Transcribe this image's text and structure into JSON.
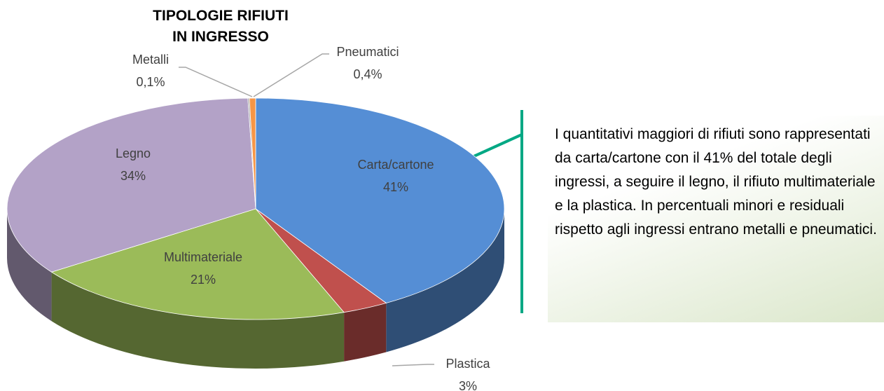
{
  "chart_data": {
    "type": "pie",
    "title": "TIPOLOGIE RIFIUTI IN INGRESSO",
    "categories": [
      "Carta/cartone",
      "Plastica",
      "Multimateriale",
      "Legno",
      "Metalli",
      "Pneumatici"
    ],
    "values": [
      41,
      3,
      21,
      34,
      0.1,
      0.4
    ],
    "value_labels": [
      "41%",
      "3%",
      "21%",
      "34%",
      "0,1%",
      "0,4%"
    ],
    "colors": [
      "#558ed5",
      "#c0504d",
      "#9bbb59",
      "#b3a2c7",
      "#a6a6a6",
      "#f79646"
    ]
  },
  "callout": "I quantitativi maggiori di rifiuti sono rappresentati da carta/cartone con il 41% del totale degli ingressi, a seguire il legno, il rifiuto multimateriale e la plastica. In percentuali minori e residuali rispetto agli ingressi entrano metalli e pneumatici."
}
